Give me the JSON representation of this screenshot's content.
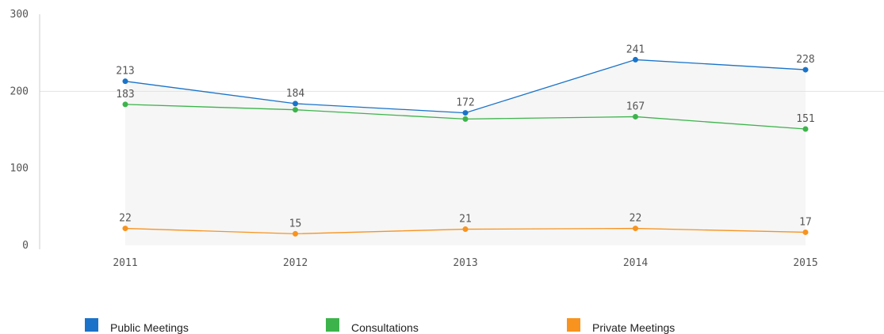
{
  "chart_data": {
    "type": "line",
    "categories": [
      "2011",
      "2012",
      "2013",
      "2014",
      "2015"
    ],
    "series": [
      {
        "name": "Public Meetings",
        "color": "#1a73c8",
        "values": [
          213,
          184,
          172,
          241,
          228
        ],
        "value_labels": [
          "213",
          "184",
          "172",
          "241",
          "228"
        ]
      },
      {
        "name": "Consultations",
        "color": "#3cb44b",
        "values": [
          183,
          176,
          164,
          167,
          151
        ],
        "value_labels": [
          "183",
          null,
          null,
          "167",
          "151"
        ]
      },
      {
        "name": "Private Meetings",
        "color": "#f7931e",
        "values": [
          22,
          15,
          21,
          22,
          17
        ],
        "value_labels": [
          "22",
          "15",
          "21",
          "22",
          "17"
        ]
      }
    ],
    "ylim": [
      0,
      300
    ],
    "yticks": [
      0,
      100,
      200,
      300
    ],
    "grid": true,
    "legend": "bottom"
  }
}
